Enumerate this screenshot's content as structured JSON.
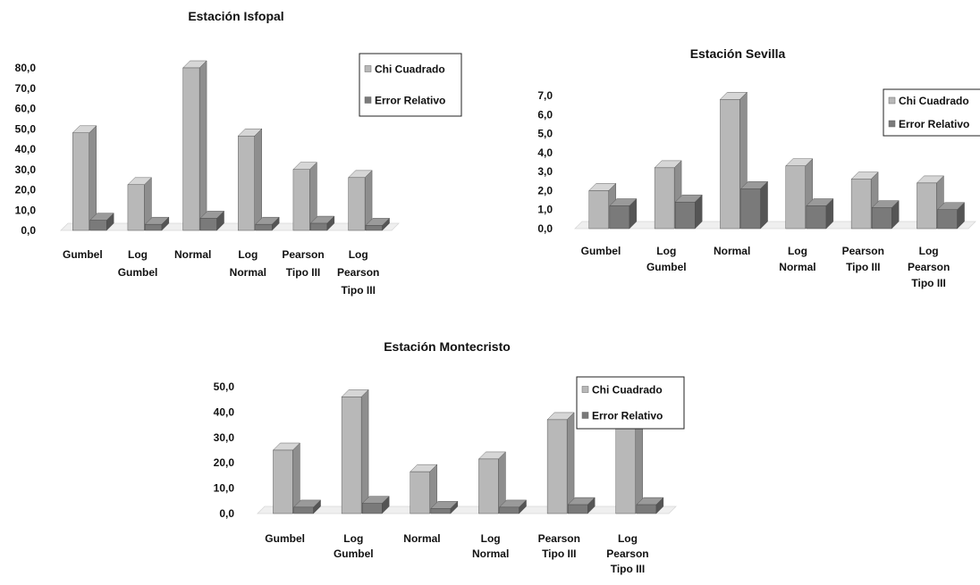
{
  "colors": {
    "chi_front": "#b8b8b8",
    "chi_side": "#8e8e8e",
    "chi_top": "#d6d6d6",
    "err_front": "#7a7a7a",
    "err_side": "#555555",
    "err_top": "#9a9a9a"
  },
  "chart_data": [
    {
      "id": "isfopal",
      "type": "bar",
      "title": "Estación Isfopal",
      "categories": [
        [
          "Gumbel"
        ],
        [
          "Log",
          "Gumbel"
        ],
        [
          "Normal"
        ],
        [
          "Log",
          "Normal"
        ],
        [
          "Pearson",
          "Tipo III"
        ],
        [
          "Log",
          "Pearson",
          "Tipo III"
        ]
      ],
      "series": [
        {
          "name": "Chi Cuadrado",
          "values": [
            48.0,
            22.5,
            80.0,
            46.5,
            30.0,
            26.0
          ]
        },
        {
          "name": "Error Relativo",
          "values": [
            5.0,
            3.0,
            6.0,
            3.0,
            3.5,
            2.5
          ]
        }
      ],
      "yticks": [
        "0,0",
        "10,0",
        "20,0",
        "30,0",
        "40,0",
        "50,0",
        "60,0",
        "70,0",
        "80,0"
      ],
      "ylim": [
        0,
        80
      ],
      "legend": "top-right",
      "grid": false
    },
    {
      "id": "sevilla",
      "type": "bar",
      "title": "Estación Sevilla",
      "categories": [
        [
          "Gumbel"
        ],
        [
          "Log",
          "Gumbel"
        ],
        [
          "Normal"
        ],
        [
          "Log",
          "Normal"
        ],
        [
          "Pearson",
          "Tipo III"
        ],
        [
          "Log",
          "Pearson",
          "Tipo III"
        ]
      ],
      "series": [
        {
          "name": "Chi Cuadrado",
          "values": [
            2.0,
            3.2,
            6.8,
            3.3,
            2.6,
            2.4
          ]
        },
        {
          "name": "Error Relativo",
          "values": [
            1.2,
            1.4,
            2.1,
            1.2,
            1.1,
            1.0
          ]
        }
      ],
      "yticks": [
        "0,0",
        "1,0",
        "2,0",
        "3,0",
        "4,0",
        "5,0",
        "6,0",
        "7,0"
      ],
      "ylim": [
        0,
        7
      ],
      "legend": "top-right",
      "grid": false
    },
    {
      "id": "montecristo",
      "type": "bar",
      "title": "Estación Montecristo",
      "categories": [
        [
          "Gumbel"
        ],
        [
          "Log",
          "Gumbel"
        ],
        [
          "Normal"
        ],
        [
          "Log",
          "Normal"
        ],
        [
          "Pearson",
          "Tipo III"
        ],
        [
          "Log",
          "Pearson",
          "Tipo III"
        ]
      ],
      "series": [
        {
          "name": "Chi Cuadrado",
          "values": [
            25.0,
            46.0,
            16.5,
            21.5,
            37.0,
            36.0
          ]
        },
        {
          "name": "Error Relativo",
          "values": [
            2.5,
            4.0,
            2.0,
            2.5,
            3.5,
            3.5
          ]
        }
      ],
      "yticks": [
        "0,0",
        "10,0",
        "20,0",
        "30,0",
        "40,0",
        "50,0"
      ],
      "ylim": [
        0,
        50
      ],
      "legend": "top-right",
      "grid": false
    }
  ]
}
